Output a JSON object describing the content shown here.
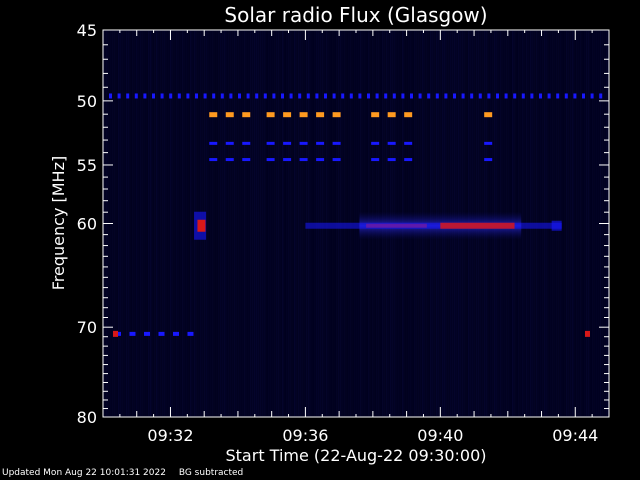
{
  "chart_data": {
    "type": "heatmap",
    "title": "Solar radio Flux (Glasgow)",
    "xlabel": "Start Time (22-Aug-22 09:30:00)",
    "ylabel": "Frequency [MHz]",
    "x_ticks": [
      "09:32",
      "09:36",
      "09:40",
      "09:44"
    ],
    "y_ticks": [
      45,
      50,
      55,
      60,
      70,
      80
    ],
    "ylim": [
      45,
      80
    ],
    "y_scale": "log",
    "x_range_minutes": [
      0,
      15
    ],
    "background_colormap": "black-blue-red",
    "features": [
      {
        "name": "carrier",
        "freq_mhz": 49.6,
        "intensity": "blue",
        "kind": "dashed"
      },
      {
        "name": "carrier",
        "freq_mhz": 51.0,
        "intensity": "orange",
        "kind": "dashed"
      },
      {
        "name": "carrier",
        "freq_mhz": 53.3,
        "intensity": "blue",
        "kind": "dashed"
      },
      {
        "name": "carrier",
        "freq_mhz": 54.6,
        "intensity": "blue",
        "kind": "dashed"
      },
      {
        "name": "emission",
        "freq_mhz": 60.2,
        "intensity": "red/blue",
        "kind": "band"
      },
      {
        "name": "carrier",
        "freq_mhz": 70.7,
        "intensity": "blue",
        "kind": "dashed"
      }
    ]
  },
  "footer": {
    "updated": "Updated Mon Aug 22 10:01:31 2022",
    "note": "BG subtracted"
  },
  "colors": {
    "background": "#000000",
    "plot_bg": "#00002a",
    "blue": "#1818ff",
    "orange": "#ff9a20",
    "red": "#d81818",
    "axis": "#ffffff"
  }
}
